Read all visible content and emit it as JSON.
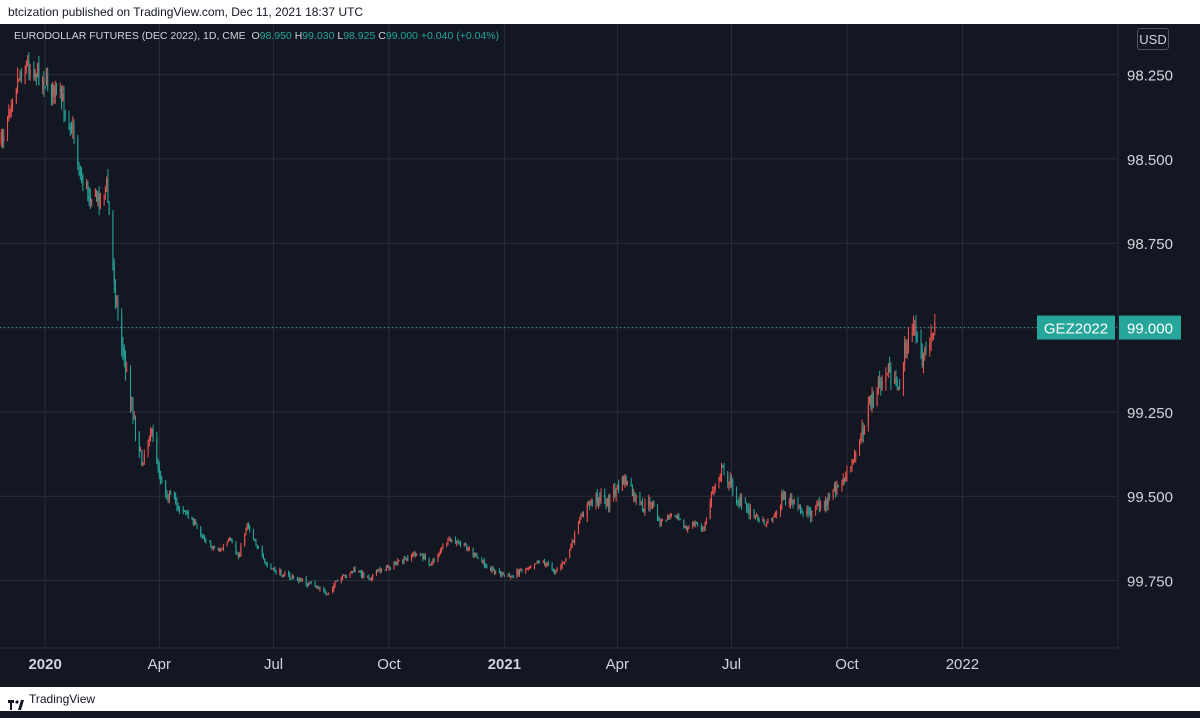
{
  "header": {
    "published_text": "btcization published on TradingView.com, Dec 11, 2021 18:37 UTC"
  },
  "legend": {
    "instrument": "EURODOLLAR FUTURES (DEC 2022), 1D, CME",
    "open_label": "O",
    "open_value": "98.950",
    "high_label": "H",
    "high_value": "99.030",
    "low_label": "L",
    "low_value": "98.925",
    "close_label": "C",
    "close_value": "99.000",
    "change": "+0.040 (+0.04%)"
  },
  "currency": "USD",
  "last_price": {
    "symbol_label": "GEZ2022",
    "value_label": "99.000",
    "value": 99.0,
    "color": "#26a69a"
  },
  "footer": {
    "brand": "TradingView",
    "logo_icon": "tradingview-logo-icon"
  },
  "colors": {
    "background": "#131722",
    "grid": "#2a2e39",
    "up": "#26a69a",
    "down": "#ef5350",
    "text": "#d1d4dc"
  },
  "chart_data": {
    "type": "candlestick",
    "title": "EURODOLLAR FUTURES (DEC 2022), 1D, CME",
    "axis": {
      "y_scale": "inverted",
      "ylim": [
        99.95,
        98.1
      ],
      "y_ticks": [
        98.25,
        98.5,
        98.75,
        99.0,
        99.25,
        99.5,
        99.75
      ],
      "y_tick_labels": [
        "98.250",
        "98.500",
        "98.750",
        "99.000",
        "99.250",
        "99.500",
        "99.750"
      ],
      "xlim": [
        "2019-11-26",
        "2022-05-05"
      ],
      "x_ticks": [
        {
          "date": "2020-01-01",
          "label": "2020",
          "bold": true
        },
        {
          "date": "2020-04-01",
          "label": "Apr",
          "bold": false
        },
        {
          "date": "2020-07-01",
          "label": "Jul",
          "bold": false
        },
        {
          "date": "2020-10-01",
          "label": "Oct",
          "bold": false
        },
        {
          "date": "2021-01-01",
          "label": "2021",
          "bold": true
        },
        {
          "date": "2021-04-01",
          "label": "Apr",
          "bold": false
        },
        {
          "date": "2021-07-01",
          "label": "Jul",
          "bold": false
        },
        {
          "date": "2021-10-01",
          "label": "Oct",
          "bold": false
        },
        {
          "date": "2022-01-01",
          "label": "2022",
          "bold": false
        }
      ],
      "grid": true
    },
    "series": [
      {
        "name": "GEZ2022",
        "kind": "approximate daily closes traced from chart (weekly anchors)",
        "points": [
          [
            "2019-11-27",
            98.45
          ],
          [
            "2019-12-04",
            98.33
          ],
          [
            "2019-12-11",
            98.25
          ],
          [
            "2019-12-18",
            98.22
          ],
          [
            "2019-12-25",
            98.24
          ],
          [
            "2020-01-01",
            98.27
          ],
          [
            "2020-01-08",
            98.3
          ],
          [
            "2020-01-15",
            98.33
          ],
          [
            "2020-01-22",
            98.4
          ],
          [
            "2020-01-29",
            98.55
          ],
          [
            "2020-02-05",
            98.6
          ],
          [
            "2020-02-12",
            98.62
          ],
          [
            "2020-02-19",
            98.58
          ],
          [
            "2020-02-26",
            98.9
          ],
          [
            "2020-03-04",
            99.1
          ],
          [
            "2020-03-11",
            99.25
          ],
          [
            "2020-03-18",
            99.4
          ],
          [
            "2020-03-25",
            99.3
          ],
          [
            "2020-04-01",
            99.43
          ],
          [
            "2020-04-08",
            99.5
          ],
          [
            "2020-04-15",
            99.52
          ],
          [
            "2020-04-22",
            99.55
          ],
          [
            "2020-04-29",
            99.58
          ],
          [
            "2020-05-06",
            99.62
          ],
          [
            "2020-05-13",
            99.65
          ],
          [
            "2020-05-20",
            99.66
          ],
          [
            "2020-05-27",
            99.63
          ],
          [
            "2020-06-03",
            99.68
          ],
          [
            "2020-06-10",
            99.58
          ],
          [
            "2020-06-17",
            99.64
          ],
          [
            "2020-06-24",
            99.7
          ],
          [
            "2020-07-01",
            99.72
          ],
          [
            "2020-07-08",
            99.73
          ],
          [
            "2020-07-15",
            99.74
          ],
          [
            "2020-07-22",
            99.75
          ],
          [
            "2020-07-29",
            99.76
          ],
          [
            "2020-08-05",
            99.77
          ],
          [
            "2020-08-12",
            99.79
          ],
          [
            "2020-08-19",
            99.76
          ],
          [
            "2020-08-26",
            99.74
          ],
          [
            "2020-09-02",
            99.72
          ],
          [
            "2020-09-09",
            99.73
          ],
          [
            "2020-09-16",
            99.74
          ],
          [
            "2020-09-23",
            99.72
          ],
          [
            "2020-09-30",
            99.71
          ],
          [
            "2020-10-07",
            99.7
          ],
          [
            "2020-10-14",
            99.69
          ],
          [
            "2020-10-21",
            99.67
          ],
          [
            "2020-10-28",
            99.68
          ],
          [
            "2020-11-04",
            99.7
          ],
          [
            "2020-11-11",
            99.66
          ],
          [
            "2020-11-18",
            99.63
          ],
          [
            "2020-11-25",
            99.64
          ],
          [
            "2020-12-02",
            99.65
          ],
          [
            "2020-12-09",
            99.68
          ],
          [
            "2020-12-16",
            99.7
          ],
          [
            "2020-12-23",
            99.72
          ],
          [
            "2020-12-30",
            99.73
          ],
          [
            "2021-01-06",
            99.74
          ],
          [
            "2021-01-13",
            99.72
          ],
          [
            "2021-01-20",
            99.71
          ],
          [
            "2021-01-27",
            99.69
          ],
          [
            "2021-02-03",
            99.7
          ],
          [
            "2021-02-10",
            99.72
          ],
          [
            "2021-02-17",
            99.7
          ],
          [
            "2021-02-24",
            99.64
          ],
          [
            "2021-03-03",
            99.56
          ],
          [
            "2021-03-10",
            99.52
          ],
          [
            "2021-03-17",
            99.5
          ],
          [
            "2021-03-24",
            99.52
          ],
          [
            "2021-03-31",
            99.48
          ],
          [
            "2021-04-07",
            99.45
          ],
          [
            "2021-04-14",
            99.5
          ],
          [
            "2021-04-21",
            99.54
          ],
          [
            "2021-04-28",
            99.52
          ],
          [
            "2021-05-05",
            99.58
          ],
          [
            "2021-05-12",
            99.56
          ],
          [
            "2021-05-19",
            99.55
          ],
          [
            "2021-05-26",
            99.6
          ],
          [
            "2021-06-02",
            99.58
          ],
          [
            "2021-06-09",
            99.6
          ],
          [
            "2021-06-16",
            99.48
          ],
          [
            "2021-06-23",
            99.42
          ],
          [
            "2021-06-30",
            99.46
          ],
          [
            "2021-07-07",
            99.52
          ],
          [
            "2021-07-14",
            99.54
          ],
          [
            "2021-07-21",
            99.56
          ],
          [
            "2021-07-28",
            99.58
          ],
          [
            "2021-08-04",
            99.56
          ],
          [
            "2021-08-11",
            99.5
          ],
          [
            "2021-08-18",
            99.52
          ],
          [
            "2021-08-25",
            99.54
          ],
          [
            "2021-09-01",
            99.55
          ],
          [
            "2021-09-08",
            99.53
          ],
          [
            "2021-09-15",
            99.52
          ],
          [
            "2021-09-22",
            99.48
          ],
          [
            "2021-09-29",
            99.45
          ],
          [
            "2021-10-06",
            99.4
          ],
          [
            "2021-10-13",
            99.3
          ],
          [
            "2021-10-20",
            99.22
          ],
          [
            "2021-10-27",
            99.18
          ],
          [
            "2021-11-03",
            99.12
          ],
          [
            "2021-11-10",
            99.2
          ],
          [
            "2021-11-17",
            99.05
          ],
          [
            "2021-11-24",
            99.0
          ],
          [
            "2021-12-01",
            99.1
          ],
          [
            "2021-12-08",
            99.0
          ],
          [
            "2021-12-10",
            99.0
          ]
        ],
        "up_color": "#26a69a",
        "down_color": "#ef5350"
      }
    ]
  }
}
